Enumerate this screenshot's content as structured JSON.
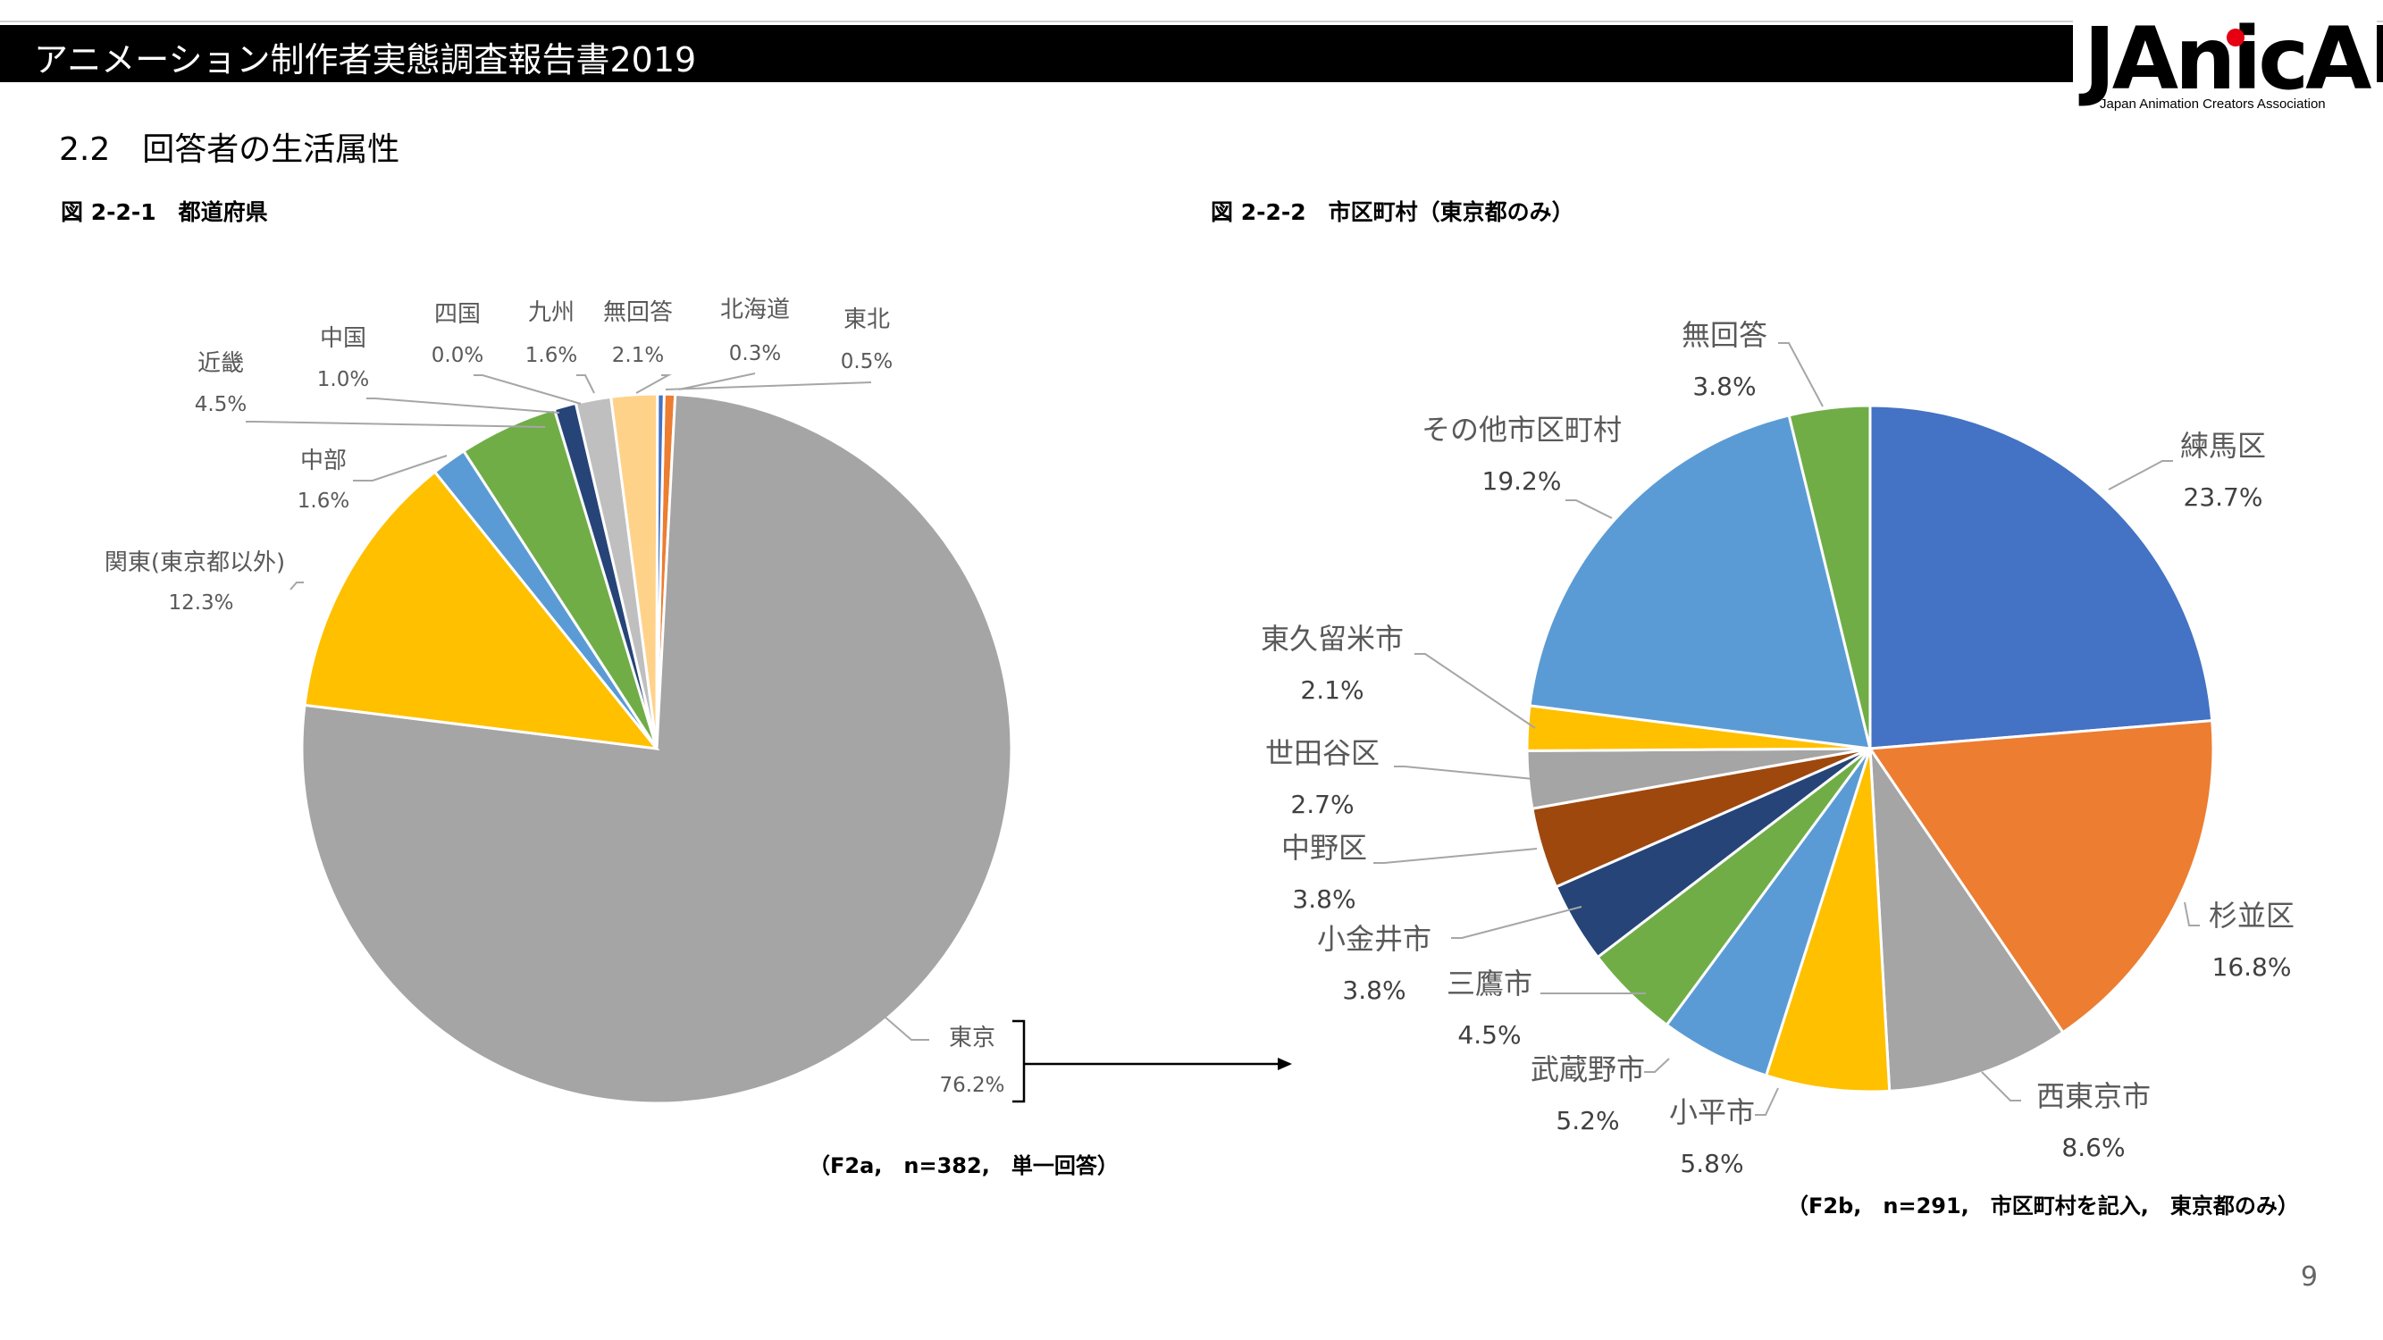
{
  "header": {
    "title": "アニメーション制作者実態調査報告書2019",
    "logo_text": "JAnicA",
    "logo_subtitle": "Japan Animation Creators Association"
  },
  "section": {
    "title": "2.2　回答者の生活属性"
  },
  "figure1": {
    "caption": "図 2-2-1　都道府県",
    "note": "（F2a,　n=382,　単一回答）"
  },
  "figure2": {
    "caption": "図 2-2-2　市区町村（東京都のみ）",
    "note": "（F2b,　n=291,　市区町村を記入,　東京都のみ）"
  },
  "page_number": "9",
  "chart_data": [
    {
      "type": "pie",
      "title": "",
      "slices": [
        {
          "label": "東京",
          "value": 76.2,
          "display": "76.2%",
          "color": "#a5a5a5"
        },
        {
          "label": "関東(東京都以外)",
          "value": 12.3,
          "display": "12.3%",
          "color": "#ffc000"
        },
        {
          "label": "中部",
          "value": 1.6,
          "display": "1.6%",
          "color": "#5b9bd5"
        },
        {
          "label": "近畿",
          "value": 4.5,
          "display": "4.5%",
          "color": "#70ad47"
        },
        {
          "label": "中国",
          "value": 1.0,
          "display": "1.0%",
          "color": "#264478"
        },
        {
          "label": "四国",
          "value": 0.0,
          "display": "0.0%",
          "color": "#9e480e"
        },
        {
          "label": "九州",
          "value": 1.6,
          "display": "1.6%",
          "color": "#bfbfbf"
        },
        {
          "label": "無回答",
          "value": 2.1,
          "display": "2.1%",
          "color": "#ffd28a"
        },
        {
          "label": "北海道",
          "value": 0.3,
          "display": "0.3%",
          "color": "#4472c4"
        },
        {
          "label": "東北",
          "value": 0.5,
          "display": "0.5%",
          "color": "#ed7d31"
        }
      ]
    },
    {
      "type": "pie",
      "title": "",
      "slices": [
        {
          "label": "練馬区",
          "value": 23.7,
          "display": "23.7%",
          "color": "#4472c4"
        },
        {
          "label": "杉並区",
          "value": 16.8,
          "display": "16.8%",
          "color": "#ed7d31"
        },
        {
          "label": "西東京市",
          "value": 8.6,
          "display": "8.6%",
          "color": "#a5a5a5"
        },
        {
          "label": "小平市",
          "value": 5.8,
          "display": "5.8%",
          "color": "#ffc000"
        },
        {
          "label": "武蔵野市",
          "value": 5.2,
          "display": "5.2%",
          "color": "#5b9bd5"
        },
        {
          "label": "三鷹市",
          "value": 4.5,
          "display": "4.5%",
          "color": "#70ad47"
        },
        {
          "label": "小金井市",
          "value": 3.8,
          "display": "3.8%",
          "color": "#264478"
        },
        {
          "label": "中野区",
          "value": 3.8,
          "display": "3.8%",
          "color": "#9e480e"
        },
        {
          "label": "世田谷区",
          "value": 2.7,
          "display": "2.7%",
          "color": "#a5a5a5"
        },
        {
          "label": "東久留米市",
          "value": 2.1,
          "display": "2.1%",
          "color": "#ffc000"
        },
        {
          "label": "その他市区町村",
          "value": 19.2,
          "display": "19.2%",
          "color": "#5b9bd5"
        },
        {
          "label": "無回答",
          "value": 3.8,
          "display": "3.8%",
          "color": "#70ad47"
        }
      ]
    }
  ]
}
